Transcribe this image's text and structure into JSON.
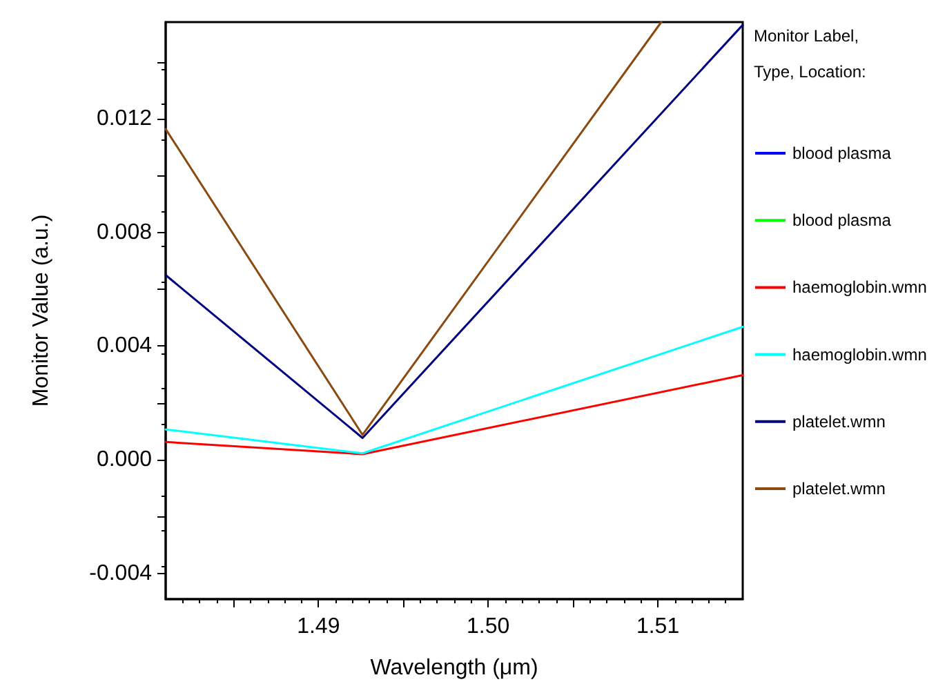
{
  "chart_data": {
    "type": "line",
    "xlabel": "Wavelength (μm)",
    "ylabel": "Monitor Value (a.u.)",
    "legend_title": "Monitor Label,\nType, Location:",
    "legend": "right",
    "grid": false,
    "marker": "none",
    "line_style": "solid",
    "x": [
      1.481,
      1.4926,
      1.515
    ],
    "xlim": [
      1.481,
      1.515
    ],
    "xticks": [
      {
        "value": 1.485,
        "label": null
      },
      1.49,
      {
        "value": 1.495,
        "label": null
      },
      {
        "value": 1.5,
        "label": "1.50"
      },
      {
        "value": 1.505,
        "label": null
      },
      1.51
    ],
    "ylim": [
      -0.0049,
      0.0154
    ],
    "yticks": [
      -0.004,
      {
        "value": -0.002,
        "label": null
      },
      {
        "value": 0,
        "label": "0.000"
      },
      {
        "value": 0.002,
        "label": null
      },
      0.004,
      {
        "value": 0.006,
        "label": null
      },
      0.008,
      {
        "value": 0.01,
        "label": null
      },
      0.012,
      {
        "value": 0.014,
        "label": null
      }
    ],
    "series": [
      {
        "name": "blood plasma",
        "color": "#0000ff",
        "values": [
          null,
          null,
          null
        ]
      },
      {
        "name": "blood plasma",
        "color": "#00ff00",
        "values": [
          null,
          null,
          null
        ]
      },
      {
        "name": "haemoglobin.wmn",
        "color": "#ff0000",
        "values": [
          0.00063,
          0.0002,
          0.00298
        ]
      },
      {
        "name": "haemoglobin.wmn",
        "color": "#00ffff",
        "values": [
          0.00107,
          0.00023,
          0.00468
        ]
      },
      {
        "name": "platelet.wmn",
        "color": "#000080",
        "values": [
          0.0065,
          0.00077,
          0.0153
        ]
      },
      {
        "name": "platelet.wmn",
        "color": "#8b4a10",
        "x": [
          1.481,
          1.4926,
          1.5102
        ],
        "values": [
          0.01164,
          0.00088,
          0.0154
        ]
      }
    ]
  }
}
